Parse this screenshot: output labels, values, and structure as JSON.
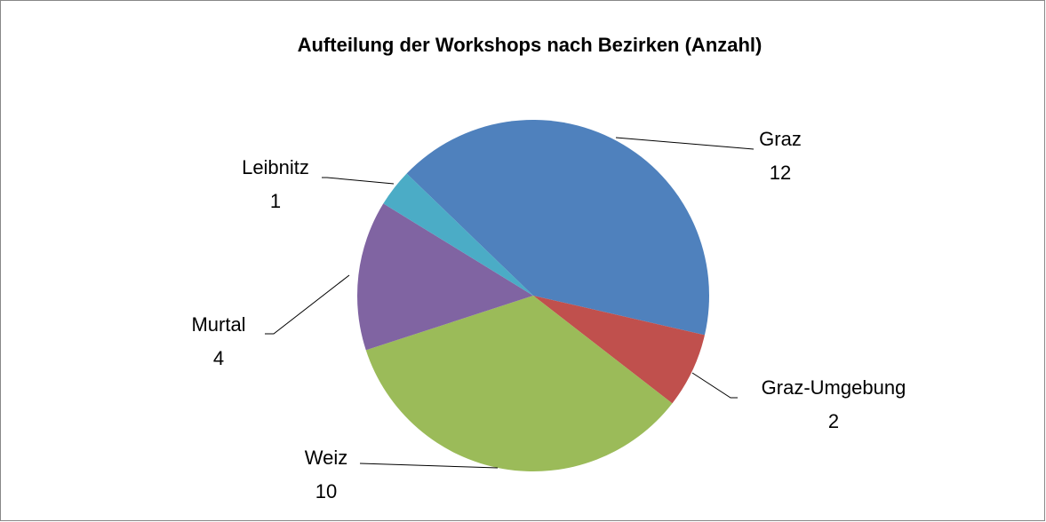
{
  "chart_data": {
    "type": "pie",
    "title": "Aufteilung der Workshops nach Bezirken (Anzahl)",
    "categories": [
      "Graz",
      "Graz-Umgebung",
      "Weiz",
      "Murtal",
      "Leibnitz"
    ],
    "values": [
      12,
      2,
      10,
      4,
      1
    ],
    "colors": [
      "#4f81bd",
      "#c0504d",
      "#9bbb59",
      "#8064a2",
      "#4bacc6"
    ]
  }
}
